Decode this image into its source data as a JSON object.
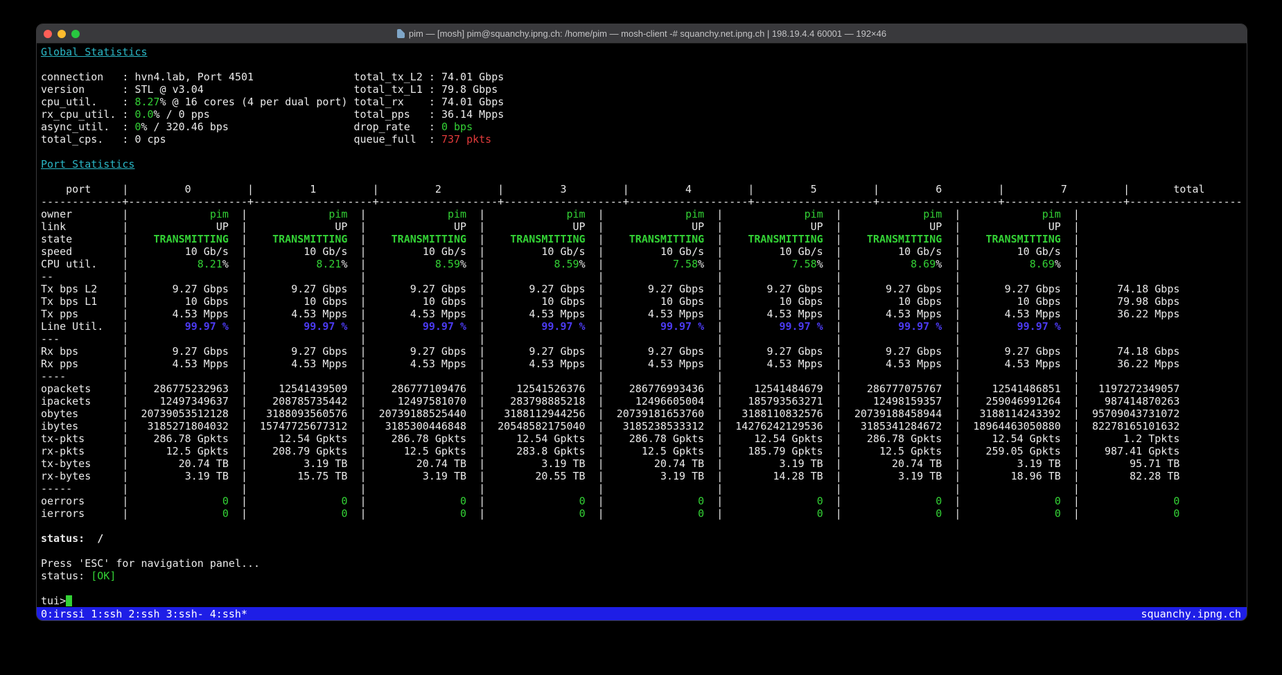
{
  "window": {
    "title": "pim — [mosh] pim@squanchy.ipng.ch: /home/pim — mosh-client -# squanchy.net.ipng.ch | 198.19.4.4 60001 — 192×46",
    "buttons": {
      "close": "close",
      "minimize": "minimize",
      "zoom": "zoom"
    }
  },
  "colors": {
    "green": "#33d135",
    "cyan": "#2ab6c5",
    "blue": "#4b3af0",
    "red": "#e23b3b",
    "statusbar_blue": "#1e1ee6"
  },
  "global_stats": {
    "heading": "Global Statistics",
    "left": [
      {
        "label": "connection",
        "parts": [
          [
            "hvn4.lab, Port 4501",
            "w"
          ]
        ]
      },
      {
        "label": "version",
        "parts": [
          [
            "STL @ v3.04",
            "w"
          ]
        ]
      },
      {
        "label": "cpu_util.",
        "parts": [
          [
            "8.27",
            "g"
          ],
          [
            "% @ 16 cores (4 per dual port)",
            "w"
          ]
        ]
      },
      {
        "label": "rx_cpu_util.",
        "parts": [
          [
            "0.0",
            "g"
          ],
          [
            "% / 0 pps",
            "w"
          ]
        ]
      },
      {
        "label": "async_util.",
        "parts": [
          [
            "0",
            "g"
          ],
          [
            "% / 320.46 bps",
            "w"
          ]
        ]
      },
      {
        "label": "total_cps.",
        "parts": [
          [
            "0 cps",
            "w"
          ]
        ]
      }
    ],
    "right": [
      {
        "label": "total_tx_L2",
        "value": "74.01 Gbps",
        "cls": "w"
      },
      {
        "label": "total_tx_L1",
        "value": "79.8 Gbps",
        "cls": "w"
      },
      {
        "label": "total_rx",
        "value": "74.01 Gbps",
        "cls": "w"
      },
      {
        "label": "total_pps",
        "value": "36.14 Mpps",
        "cls": "w"
      },
      {
        "label": "drop_rate",
        "value": "0 bps",
        "cls": "g"
      },
      {
        "label": "queue_full",
        "value": "737 pkts",
        "cls": "r"
      }
    ]
  },
  "port_stats": {
    "heading": "Port Statistics",
    "columns": [
      "port",
      "0",
      "1",
      "2",
      "3",
      "4",
      "5",
      "6",
      "7",
      "total"
    ],
    "rows": [
      {
        "label": "owner",
        "cls": "g",
        "cells": [
          "pim",
          "pim",
          "pim",
          "pim",
          "pim",
          "pim",
          "pim",
          "pim",
          ""
        ]
      },
      {
        "label": "link",
        "cls": "w",
        "cells": [
          "UP",
          "UP",
          "UP",
          "UP",
          "UP",
          "UP",
          "UP",
          "UP",
          ""
        ]
      },
      {
        "label": "state",
        "cls": "g bold",
        "cells": [
          "TRANSMITTING",
          "TRANSMITTING",
          "TRANSMITTING",
          "TRANSMITTING",
          "TRANSMITTING",
          "TRANSMITTING",
          "TRANSMITTING",
          "TRANSMITTING",
          ""
        ]
      },
      {
        "label": "speed",
        "cls": "w",
        "cells": [
          "10 Gb/s",
          "10 Gb/s",
          "10 Gb/s",
          "10 Gb/s",
          "10 Gb/s",
          "10 Gb/s",
          "10 Gb/s",
          "10 Gb/s",
          ""
        ]
      },
      {
        "label": "CPU util.",
        "pct": true,
        "cells": [
          "8.21",
          "8.21",
          "8.59",
          "8.59",
          "7.58",
          "7.58",
          "8.69",
          "8.69",
          ""
        ]
      },
      {
        "label": "--",
        "cls": "w",
        "cells": [
          "",
          "",
          "",
          "",
          "",
          "",
          "",
          "",
          ""
        ]
      },
      {
        "label": "Tx bps L2",
        "cls": "w",
        "cells": [
          "9.27 Gbps",
          "9.27 Gbps",
          "9.27 Gbps",
          "9.27 Gbps",
          "9.27 Gbps",
          "9.27 Gbps",
          "9.27 Gbps",
          "9.27 Gbps",
          "74.18 Gbps"
        ]
      },
      {
        "label": "Tx bps L1",
        "cls": "w",
        "cells": [
          "10 Gbps",
          "10 Gbps",
          "10 Gbps",
          "10 Gbps",
          "10 Gbps",
          "10 Gbps",
          "10 Gbps",
          "10 Gbps",
          "79.98 Gbps"
        ]
      },
      {
        "label": "Tx pps",
        "cls": "w",
        "cells": [
          "4.53 Mpps",
          "4.53 Mpps",
          "4.53 Mpps",
          "4.53 Mpps",
          "4.53 Mpps",
          "4.53 Mpps",
          "4.53 Mpps",
          "4.53 Mpps",
          "36.22 Mpps"
        ]
      },
      {
        "label": "Line Util.",
        "cls": "b",
        "cells": [
          "99.97 %",
          "99.97 %",
          "99.97 %",
          "99.97 %",
          "99.97 %",
          "99.97 %",
          "99.97 %",
          "99.97 %",
          ""
        ]
      },
      {
        "label": "---",
        "cls": "w",
        "cells": [
          "",
          "",
          "",
          "",
          "",
          "",
          "",
          "",
          ""
        ]
      },
      {
        "label": "Rx bps",
        "cls": "w",
        "cells": [
          "9.27 Gbps",
          "9.27 Gbps",
          "9.27 Gbps",
          "9.27 Gbps",
          "9.27 Gbps",
          "9.27 Gbps",
          "9.27 Gbps",
          "9.27 Gbps",
          "74.18 Gbps"
        ]
      },
      {
        "label": "Rx pps",
        "cls": "w",
        "cells": [
          "4.53 Mpps",
          "4.53 Mpps",
          "4.53 Mpps",
          "4.53 Mpps",
          "4.53 Mpps",
          "4.53 Mpps",
          "4.53 Mpps",
          "4.53 Mpps",
          "36.22 Mpps"
        ]
      },
      {
        "label": "----",
        "cls": "w",
        "cells": [
          "",
          "",
          "",
          "",
          "",
          "",
          "",
          "",
          ""
        ]
      },
      {
        "label": "opackets",
        "cls": "w",
        "cells": [
          "286775232963",
          "12541439509",
          "286777109476",
          "12541526376",
          "286776993436",
          "12541484679",
          "286777075767",
          "12541486851",
          "1197272349057"
        ]
      },
      {
        "label": "ipackets",
        "cls": "w",
        "cells": [
          "12497349637",
          "208785735442",
          "12497581070",
          "283798885218",
          "12496605004",
          "185793563271",
          "12498159357",
          "259046991264",
          "987414870263"
        ]
      },
      {
        "label": "obytes",
        "cls": "w",
        "cells": [
          "20739053512128",
          "3188093560576",
          "20739188525440",
          "3188112944256",
          "20739181653760",
          "3188110832576",
          "20739188458944",
          "3188114243392",
          "95709043731072"
        ]
      },
      {
        "label": "ibytes",
        "cls": "w",
        "cells": [
          "3185271804032",
          "15747725677312",
          "3185300446848",
          "20548582175040",
          "3185238533312",
          "14276242129536",
          "3185341284672",
          "18964463050880",
          "82278165101632"
        ]
      },
      {
        "label": "tx-pkts",
        "cls": "w",
        "cells": [
          "286.78 Gpkts",
          "12.54 Gpkts",
          "286.78 Gpkts",
          "12.54 Gpkts",
          "286.78 Gpkts",
          "12.54 Gpkts",
          "286.78 Gpkts",
          "12.54 Gpkts",
          "1.2 Tpkts"
        ]
      },
      {
        "label": "rx-pkts",
        "cls": "w",
        "cells": [
          "12.5 Gpkts",
          "208.79 Gpkts",
          "12.5 Gpkts",
          "283.8 Gpkts",
          "12.5 Gpkts",
          "185.79 Gpkts",
          "12.5 Gpkts",
          "259.05 Gpkts",
          "987.41 Gpkts"
        ]
      },
      {
        "label": "tx-bytes",
        "cls": "w",
        "cells": [
          "20.74 TB",
          "3.19 TB",
          "20.74 TB",
          "3.19 TB",
          "20.74 TB",
          "3.19 TB",
          "20.74 TB",
          "3.19 TB",
          "95.71 TB"
        ]
      },
      {
        "label": "rx-bytes",
        "cls": "w",
        "cells": [
          "3.19 TB",
          "15.75 TB",
          "3.19 TB",
          "20.55 TB",
          "3.19 TB",
          "14.28 TB",
          "3.19 TB",
          "18.96 TB",
          "82.28 TB"
        ]
      },
      {
        "label": "-----",
        "cls": "w",
        "cells": [
          "",
          "",
          "",
          "",
          "",
          "",
          "",
          "",
          ""
        ]
      },
      {
        "label": "oerrors",
        "cls": "g",
        "cells": [
          "0",
          "0",
          "0",
          "0",
          "0",
          "0",
          "0",
          "0",
          "0"
        ]
      },
      {
        "label": "ierrors",
        "cls": "g",
        "cells": [
          "0",
          "0",
          "0",
          "0",
          "0",
          "0",
          "0",
          "0",
          "0"
        ]
      }
    ]
  },
  "status_panel": {
    "status_label": "status:",
    "spinner": "/",
    "hint_text": "Press 'ESC' for navigation panel...",
    "ok_label": "status:",
    "ok_value": "[OK]",
    "prompt": "tui>"
  },
  "tmux_bar": {
    "windows": [
      "0:irssi",
      "1:ssh",
      "2:ssh",
      "3:ssh-",
      "4:ssh*"
    ],
    "hostname": "squanchy.ipng.ch"
  }
}
